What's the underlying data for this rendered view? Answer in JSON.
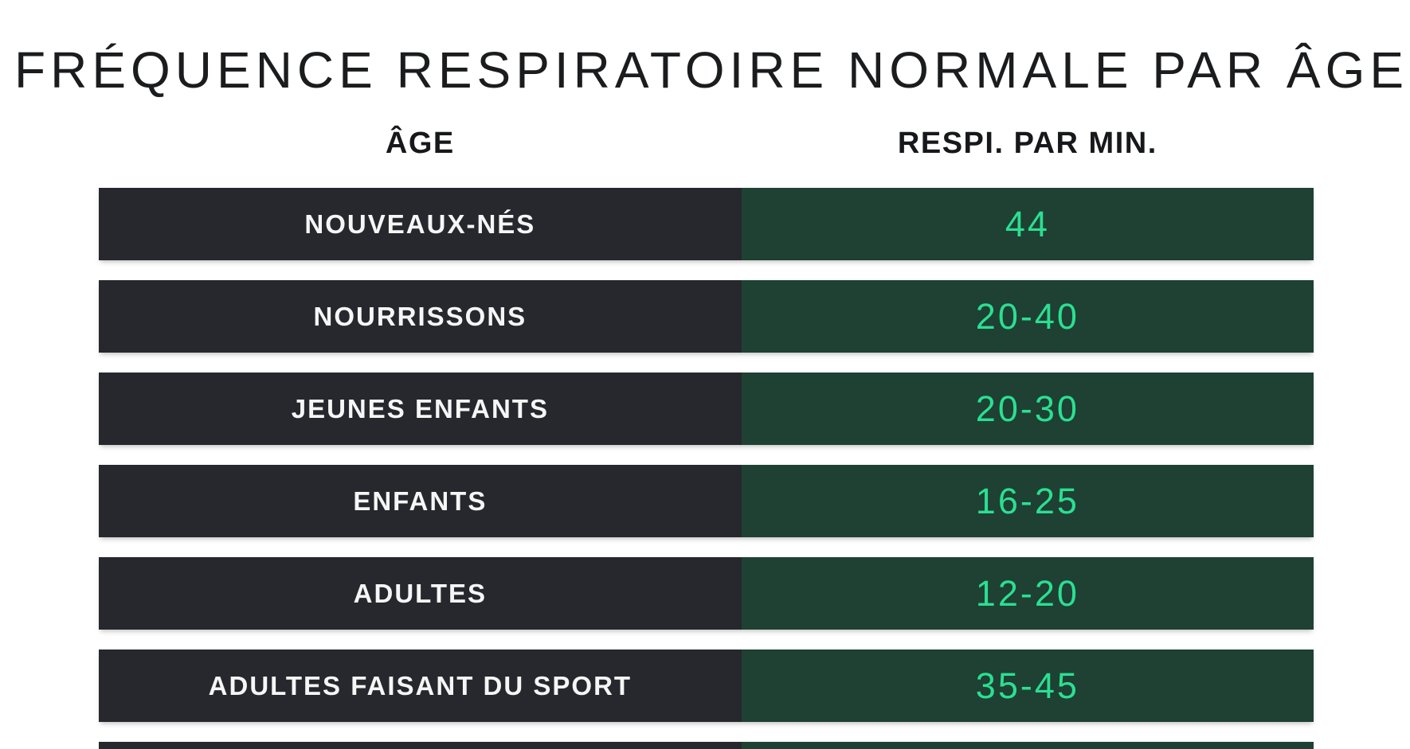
{
  "page": {
    "title": "FRÉQUENCE RESPIRATOIRE NORMALE PAR ÂGE"
  },
  "colors": {
    "background": "#ffffff",
    "title_text": "#1b1c1e",
    "header_text": "#17181b",
    "age_cell_bg": "#26282d",
    "value_cell_bg": "#1e4134",
    "age_label_text": "#f6f6f6",
    "value_text": "#2bdf91"
  },
  "chart_data": {
    "type": "table",
    "title": "FRÉQUENCE RESPIRATOIRE NORMALE PAR ÂGE",
    "columns": [
      "ÂGE",
      "RESPI. PAR MIN."
    ],
    "rows": [
      {
        "label": "NOUVEAUX-NÉS",
        "value": "44",
        "min": 44,
        "max": 44
      },
      {
        "label": "NOURRISSONS",
        "value": "20-40",
        "min": 20,
        "max": 40
      },
      {
        "label": "JEUNES ENFANTS",
        "value": "20-30",
        "min": 20,
        "max": 30
      },
      {
        "label": "ENFANTS",
        "value": "16-25",
        "min": 16,
        "max": 25
      },
      {
        "label": "ADULTES",
        "value": "12-20",
        "min": 12,
        "max": 20
      },
      {
        "label": "ADULTES FAISANT DU SPORT",
        "value": "35-45",
        "min": 35,
        "max": 45
      }
    ],
    "legend": "none",
    "grid": false
  }
}
